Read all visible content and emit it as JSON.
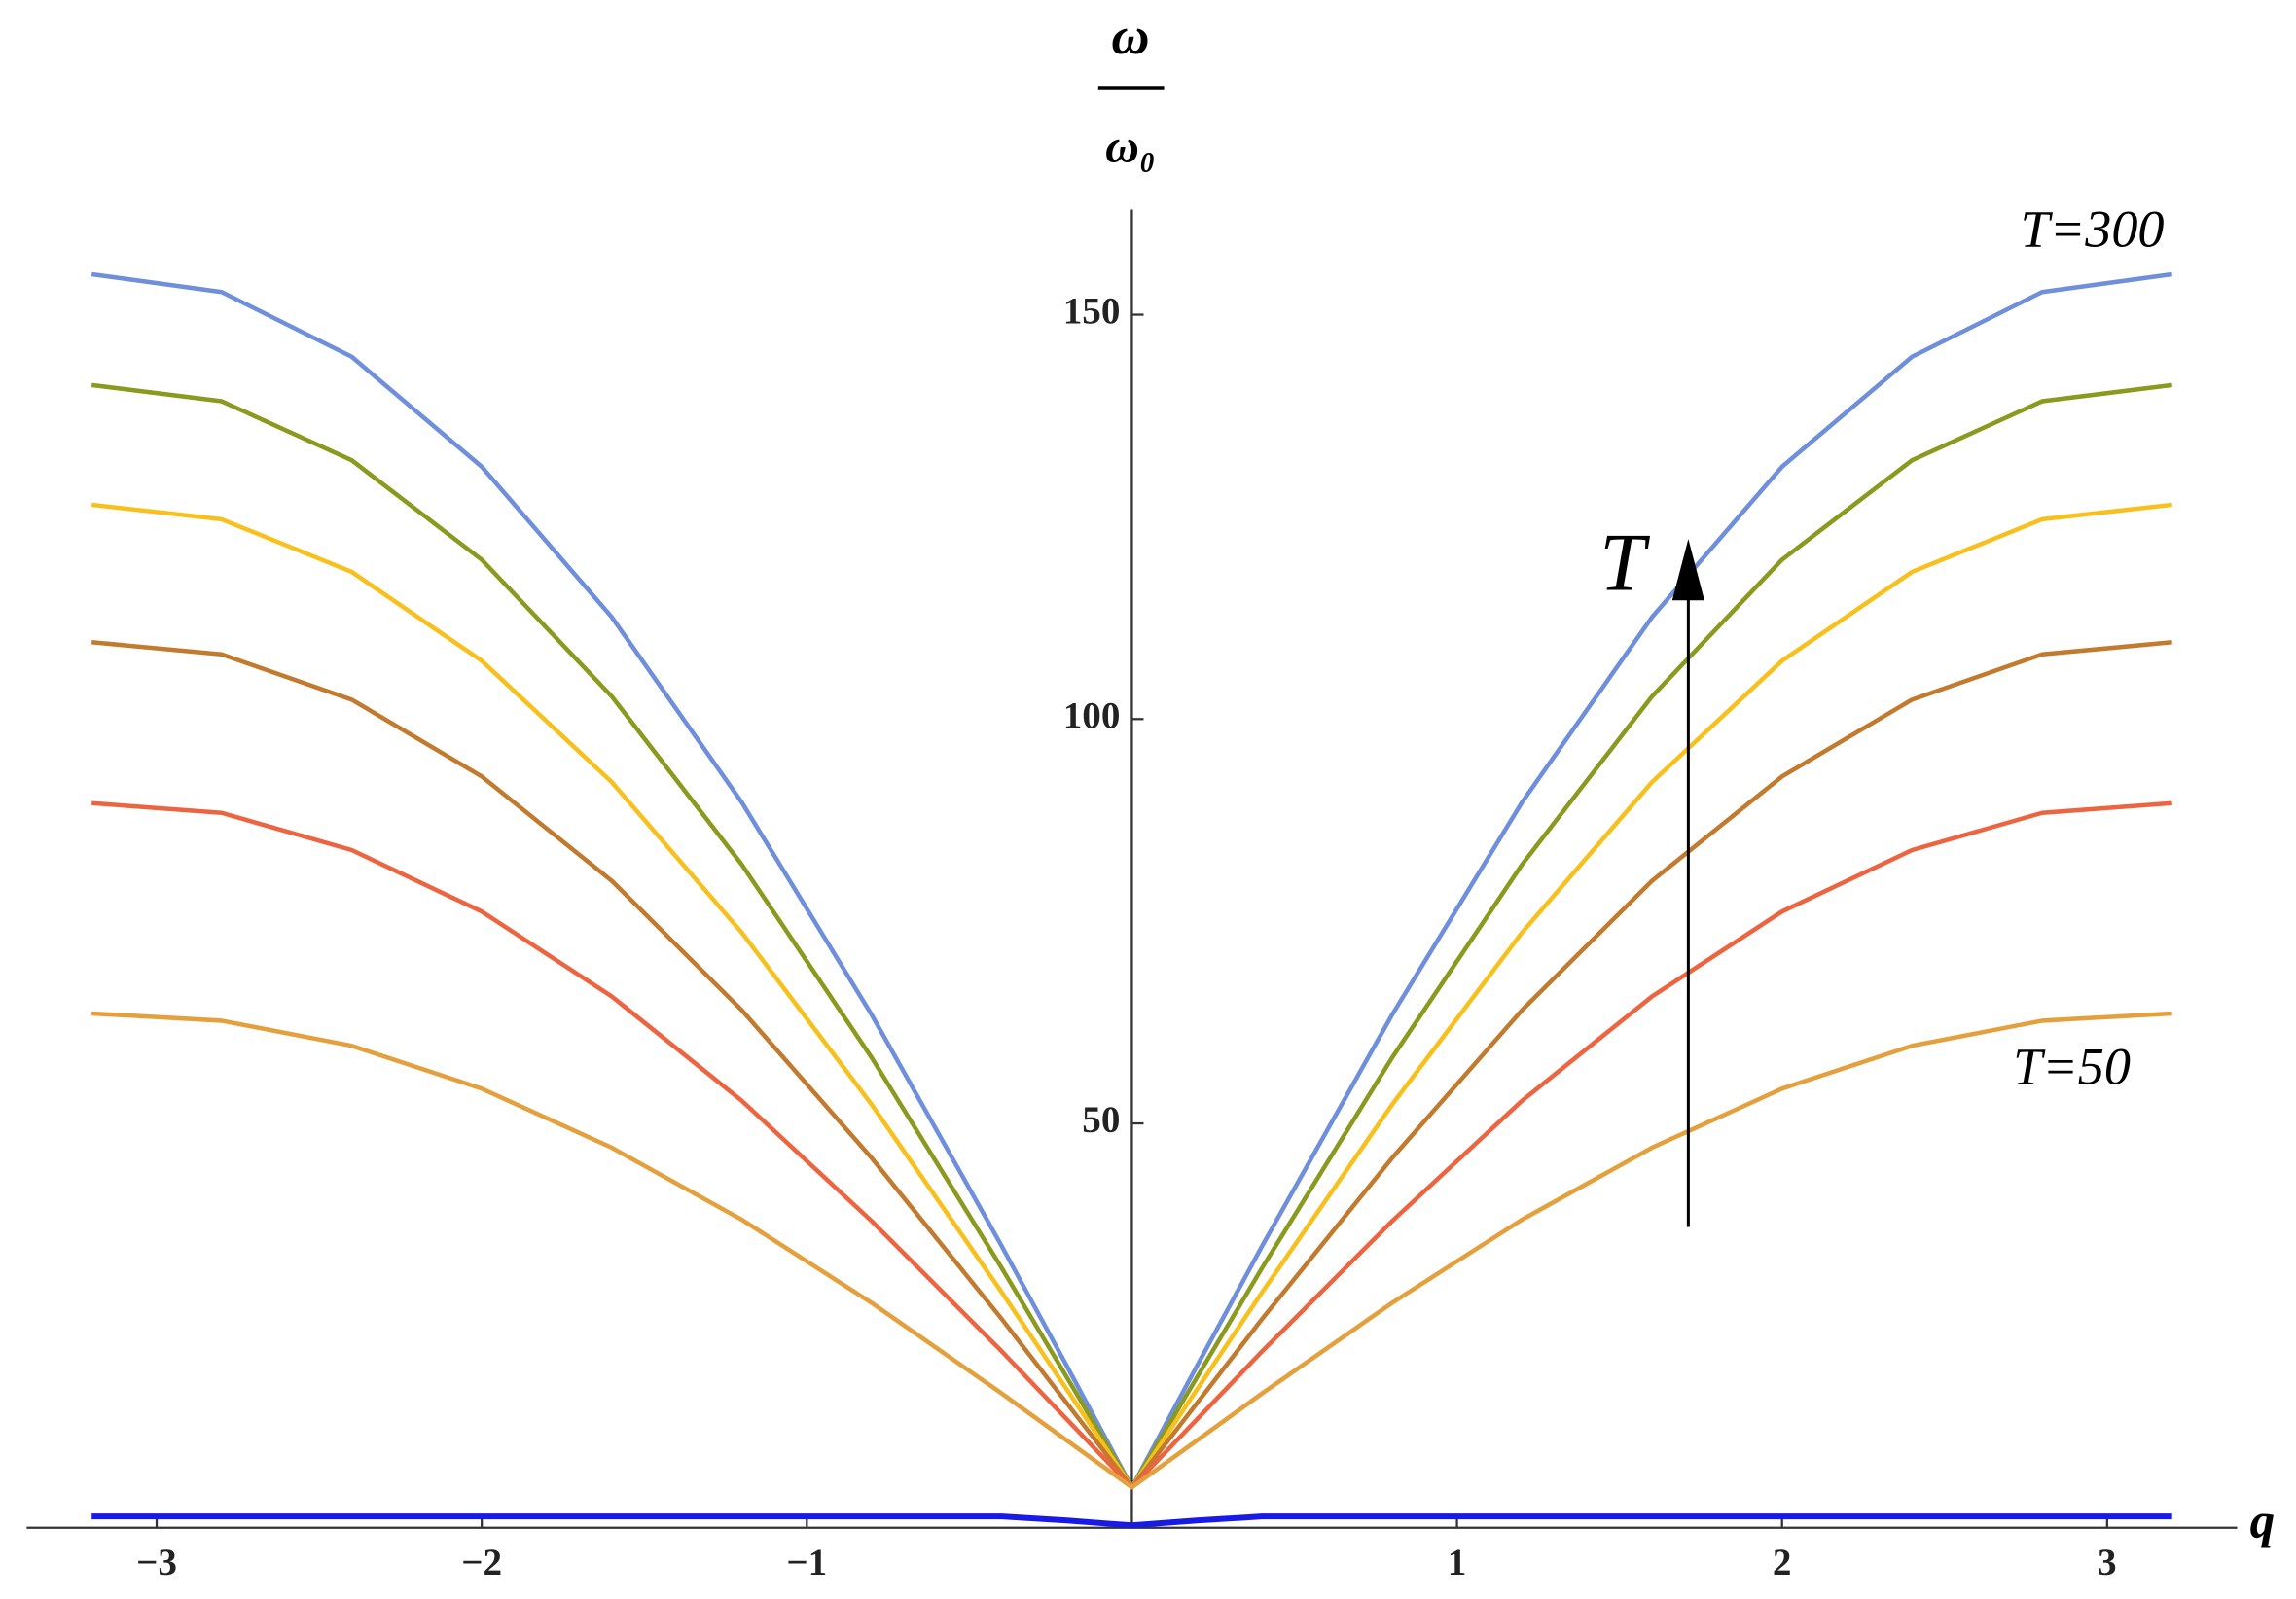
{
  "chart_data": {
    "type": "line",
    "x_label": "q",
    "y_label_numerator": "ω",
    "y_label_denominator": "ω₀",
    "annotations": [
      "T=300",
      "T=50",
      "T"
    ],
    "x": [
      -3.2,
      -2.8,
      -2.4,
      -2.0,
      -1.6,
      -1.2,
      -0.8,
      -0.4,
      -0.2,
      0,
      0.2,
      0.4,
      0.8,
      1.2,
      1.6,
      2.0,
      2.4,
      2.8,
      3.2
    ],
    "series": [
      {
        "color": "#6f8fdc",
        "values": [
          155,
          152.8,
          144.8,
          131.2,
          112.6,
          89.7,
          63.4,
          34.8,
          20.0,
          5,
          20.0,
          34.8,
          63.4,
          89.7,
          112.6,
          131.2,
          144.8,
          152.8,
          155
        ]
      },
      {
        "color": "#8a9a1e",
        "values": [
          141.3,
          139.3,
          132.0,
          119.7,
          102.8,
          82.0,
          58.1,
          32.1,
          18.6,
          5,
          18.6,
          32.1,
          58.1,
          82.0,
          102.8,
          119.7,
          132.0,
          139.3,
          141.3
        ]
      },
      {
        "color": "#f7c01c",
        "values": [
          126.5,
          124.7,
          118.2,
          107.2,
          92.2,
          73.6,
          52.3,
          29.1,
          17.1,
          5,
          17.1,
          29.1,
          52.3,
          73.6,
          92.2,
          107.2,
          118.2,
          124.7,
          126.5
        ]
      },
      {
        "color": "#c27b2e",
        "values": [
          109.5,
          108.0,
          102.4,
          92.9,
          80.0,
          64.0,
          45.7,
          25.8,
          15.4,
          5,
          15.4,
          25.8,
          45.7,
          64.0,
          80.0,
          92.9,
          102.4,
          108.0,
          109.5
        ]
      },
      {
        "color": "#ec6440",
        "values": [
          89.6,
          88.4,
          83.8,
          76.2,
          65.7,
          52.8,
          37.9,
          21.8,
          13.4,
          5,
          13.4,
          21.8,
          37.9,
          52.8,
          65.7,
          76.2,
          83.8,
          88.4,
          89.6
        ]
      },
      {
        "color": "#e3a03c",
        "values": [
          63.6,
          62.7,
          59.6,
          54.3,
          47.0,
          38.1,
          27.8,
          16.6,
          10.8,
          5,
          10.8,
          16.6,
          27.8,
          38.1,
          47.0,
          54.3,
          59.6,
          62.7,
          63.6
        ]
      },
      {
        "color": "#1a1ae6",
        "values": [
          1.4,
          1.4,
          1.4,
          1.4,
          1.4,
          1.4,
          1.4,
          1.4,
          0.9,
          0.3,
          0.9,
          1.4,
          1.4,
          1.4,
          1.4,
          1.4,
          1.4,
          1.4,
          1.4
        ]
      }
    ],
    "xlim": [
      -3.4,
      3.4
    ],
    "ylim": [
      0,
      163
    ],
    "xticks": [
      {
        "value": -3,
        "label": "−3"
      },
      {
        "value": -2,
        "label": "−2"
      },
      {
        "value": -1,
        "label": "−1"
      },
      1,
      2,
      3
    ],
    "yticks": [
      50,
      100,
      150
    ],
    "grid": false
  }
}
